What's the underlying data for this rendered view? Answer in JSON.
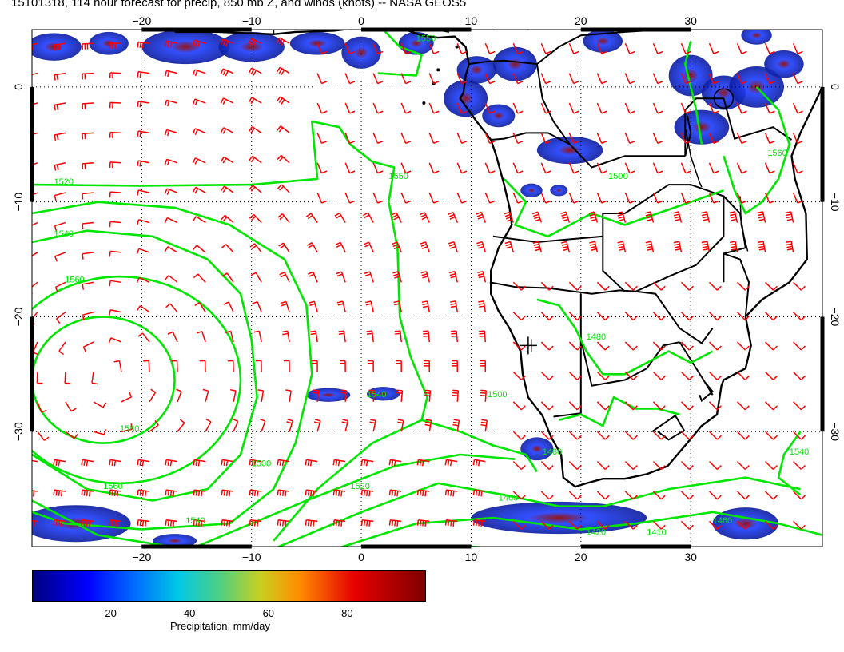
{
  "title": "15101318, 114 hour forecast for precip, 850 mb Z, and winds (knots) -- NASA GEOS5",
  "map": {
    "lon_range": [
      -30,
      42
    ],
    "lat_range": [
      -40,
      5
    ],
    "lon_ticks": [
      -20,
      -10,
      0,
      10,
      20,
      30
    ],
    "lon_tick_labels": [
      "−20",
      "−10",
      "0",
      "10",
      "20",
      "30"
    ],
    "lat_ticks": [
      0,
      -10,
      -20,
      -30
    ],
    "lat_tick_labels": [
      "0",
      "−10",
      "−20",
      "−30"
    ],
    "grid": "dotted",
    "colors": {
      "land": "#ffffff",
      "ocean": "#ffffff",
      "coast": "#000000",
      "contour": "#00e600",
      "wind_barb": "#ff0000",
      "precip": "#0a1ea0"
    }
  },
  "contour_labels": [
    {
      "text": "1520",
      "lon": -28,
      "lat": -8.5
    },
    {
      "text": "1540",
      "lon": -28,
      "lat": -13
    },
    {
      "text": "1560",
      "lon": -27,
      "lat": -17
    },
    {
      "text": "1580",
      "lon": -22,
      "lat": -30
    },
    {
      "text": "1560",
      "lon": -23.5,
      "lat": -35
    },
    {
      "text": "1540",
      "lon": -16,
      "lat": -38
    },
    {
      "text": "1550",
      "lon": 2.5,
      "lat": -8
    },
    {
      "text": "1540",
      "lon": 0.5,
      "lat": -27
    },
    {
      "text": "1500",
      "lon": 11.5,
      "lat": -27
    },
    {
      "text": "1500",
      "lon": 22.5,
      "lat": -8
    },
    {
      "text": "1480",
      "lon": 20.5,
      "lat": -22
    },
    {
      "text": "1480",
      "lon": 16.5,
      "lat": -32
    },
    {
      "text": "1460",
      "lon": 12.5,
      "lat": -36
    },
    {
      "text": "1420",
      "lon": 20.5,
      "lat": -39
    },
    {
      "text": "1410",
      "lon": 26,
      "lat": -39
    },
    {
      "text": "1460",
      "lon": 32,
      "lat": -38
    },
    {
      "text": "1500",
      "lon": -10,
      "lat": -33
    },
    {
      "text": "1520",
      "lon": -1,
      "lat": -35
    },
    {
      "text": "1540",
      "lon": 39,
      "lat": -32
    },
    {
      "text": "1560",
      "lon": 37,
      "lat": -6
    },
    {
      "text": "1550",
      "lon": 5,
      "lat": 4
    }
  ],
  "station_marker": {
    "lon": 15.2,
    "lat": -22.5
  },
  "colorbar": {
    "ticks": [
      20,
      40,
      60,
      80
    ],
    "range": [
      0,
      100
    ],
    "label": "Precipitation, mm/day"
  }
}
